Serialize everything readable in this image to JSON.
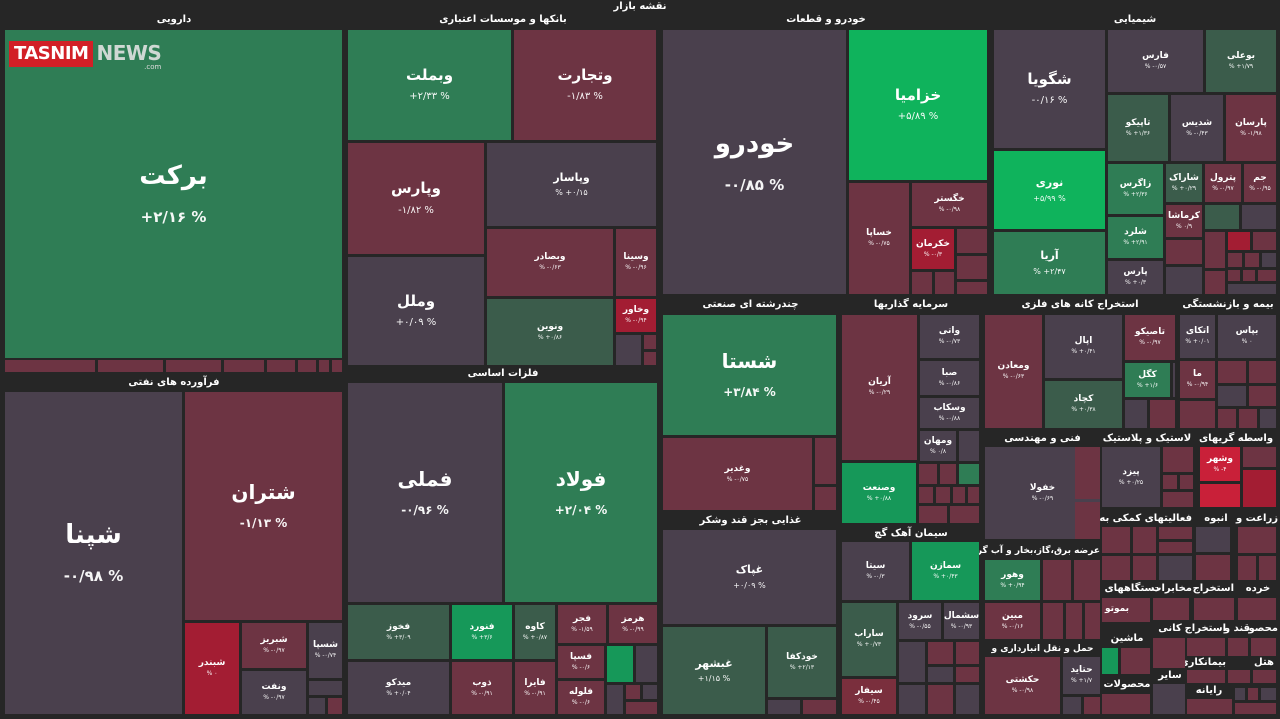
{
  "page_title": "نقشه بازار",
  "logo": {
    "part1": "TASNIM",
    "part2": "NEWS",
    "part3": ".com"
  },
  "sections": {
    "darooi": "دارویی",
    "banks": "بانکها و موسسات اعتباری",
    "khodro": "خودرو و قطعات",
    "shimiyai": "شیمیایی",
    "faravarde": "فرآورده های نفتی",
    "felezat": "فلزات اساسی",
    "chandreshte": "چندرشته ای صنعتی",
    "sarmaye": "سرمایه گذاریها",
    "estekhraj": "استخراج کانه های فلزی",
    "bime": "بیمه و بازنشستگی",
    "fanni": "فنی و مهندسی",
    "lastik": "لاستیک و پلاستیک",
    "vasete": "واسطه گریهای",
    "ghazaei": "غذایی بجز قند وشکر",
    "simane": "سیمان آهک گچ",
    "arze_bargh": "عرضه برق،گاز،بخار و آب گرم",
    "haml": "حمل و نقل انبارداری و",
    "faaliat": "فعالیتهای کمکی به",
    "anboh": "انبوه",
    "zeraat": "زراعت و",
    "dastgah": "دستگاههای",
    "mokhaberat": "مخابرات",
    "estekhraj2": "استخراج",
    "kharde": "خرده",
    "mashin": "ماشین",
    "kani": "کانی",
    "estekhraj3": "استخراج",
    "ghand": "قند و",
    "mahsoolat": "محصولات",
    "sayer": "سایر",
    "bimanekari": "بیمانکاری",
    "mahsool2": "محصو",
    "hotel": "هتل",
    "rayane": "رایانه"
  },
  "tiles": {
    "barekat": {
      "name": "برکت",
      "pct": "% ۲/۱۶+"
    },
    "shapna": {
      "name": "شپنا",
      "pct": "% ۰/۹۸-"
    },
    "shatran": {
      "name": "شتران",
      "pct": "% ۱/۱۳-"
    },
    "shabriz": {
      "name": "شبریز",
      "pct": "۰/۹۷- %"
    },
    "shebandar": {
      "name": "شبندر",
      "pct": "۰ %"
    },
    "shaspa": {
      "name": "شسپا",
      "pct": "۰/۷۴- %"
    },
    "vanaft": {
      "name": "ونفت",
      "pct": "۰/۹۷- %"
    },
    "vabemellat": {
      "name": "وبملت",
      "pct": "% ۲/۳۳+"
    },
    "vatejarat": {
      "name": "وتجارت",
      "pct": "% ۱/۸۳-"
    },
    "vaparsi": {
      "name": "وپارس",
      "pct": "% ۱/۸۲-"
    },
    "vapasar": {
      "name": "وپاسار",
      "pct": "۰/۱۵+ %"
    },
    "vamellal": {
      "name": "وملل",
      "pct": "% ۰/۰۹+"
    },
    "vabsader": {
      "name": "وبصادر",
      "pct": "۰/۶۳- %"
    },
    "vasina": {
      "name": "وسینا",
      "pct": "۰/۹۶- %"
    },
    "vakhavar": {
      "name": "وخاور",
      "pct": "۰/۹۴- %"
    },
    "vanovin": {
      "name": "ونوین",
      "pct": "۰/۸۶+ %"
    },
    "khodro": {
      "name": "خودرو",
      "pct": "% ۰/۸۵-"
    },
    "khazamia": {
      "name": "خزامیا",
      "pct": "% ۵/۸۹+"
    },
    "khegostar": {
      "name": "خگستر",
      "pct": "۰/۹۸- %"
    },
    "khesapa": {
      "name": "خساپا",
      "pct": "۰/۷۵- %"
    },
    "khekerman": {
      "name": "خکرمان",
      "pct": "۰/۳- %"
    },
    "shegooya": {
      "name": "شگویا",
      "pct": "% ۰/۱۶-"
    },
    "noori": {
      "name": "نوری",
      "pct": "% ۵/۹۹+"
    },
    "arya": {
      "name": "آریا",
      "pct": "۲/۴۷+ %"
    },
    "fars": {
      "name": "فارس",
      "pct": "۰/۵۷- %"
    },
    "boali": {
      "name": "بوعلی",
      "pct": "۱/۷۹+ %"
    },
    "tapiko": {
      "name": "تاپیکو",
      "pct": "۱/۳۶+ %"
    },
    "shedis": {
      "name": "شدیس",
      "pct": "۰/۴۳- %"
    },
    "parsan": {
      "name": "پارسان",
      "pct": "۱/۹۸- %"
    },
    "zagros": {
      "name": "زاگرس",
      "pct": "۲/۳۶+ %"
    },
    "sharak": {
      "name": "شاراک",
      "pct": "۰/۲۹+ %"
    },
    "petrol": {
      "name": "پترول",
      "pct": "۰/۹۷- %"
    },
    "jam": {
      "name": "جم",
      "pct": "۰/۹۵- %"
    },
    "kermasha": {
      "name": "کرماشا",
      "pct": "۰/۹ %"
    },
    "sharad": {
      "name": "شلرد",
      "pct": "۲/۹۱+ %"
    },
    "pars": {
      "name": "پارس",
      "pct": "۰/۳+ %"
    },
    "femli": {
      "name": "فملی",
      "pct": "% ۰/۹۶-"
    },
    "foolad": {
      "name": "فولاد",
      "pct": "% ۲/۰۴+"
    },
    "fakhooz": {
      "name": "فخوز",
      "pct": "۳/۰۹+ %"
    },
    "fanavard": {
      "name": "فنورد",
      "pct": "۳/۶+ %"
    },
    "kave": {
      "name": "کاوه",
      "pct": "۰/۸۷+ %"
    },
    "fajr": {
      "name": "فجر",
      "pct": "۱/۵۹- %"
    },
    "hormoz": {
      "name": "هرمز",
      "pct": "۰/۹۹- %"
    },
    "midko": {
      "name": "میدکو",
      "pct": "۰/۰۴+ %"
    },
    "zob": {
      "name": "ذوب",
      "pct": "۰/۹۱- %"
    },
    "fasapa": {
      "name": "فسپا",
      "pct": "۰/۶- %"
    },
    "faira": {
      "name": "فایرا",
      "pct": "۰/۹۱- %"
    },
    "foolah": {
      "name": "فلوله",
      "pct": "۰/۶- %"
    },
    "shasta": {
      "name": "شستا",
      "pct": "% ۳/۸۴+"
    },
    "vaghadir": {
      "name": "وغدیر",
      "pct": "۰/۷۵- %"
    },
    "ghpak": {
      "name": "غپاک",
      "pct": "% ۰/۰۹+"
    },
    "ghbshahr": {
      "name": "غبشهر",
      "pct": "% ۱/۱۵+"
    },
    "khodka": {
      "name": "خودکفا",
      "pct": "۲/۱۳+ %"
    },
    "arian": {
      "name": "آریان",
      "pct": "۰/۲۹- %"
    },
    "vati": {
      "name": "واتی",
      "pct": "۰/۷۳- %"
    },
    "saba": {
      "name": "صبا",
      "pct": "۰/۸۶- %"
    },
    "vaskab": {
      "name": "وسکاب",
      "pct": "۰/۸۸- %"
    },
    "vamahan": {
      "name": "ومهان",
      "pct": "۰/۸ %"
    },
    "vasanat": {
      "name": "وصنعت",
      "pct": "۰/۸۸+ %"
    },
    "vamaaden": {
      "name": "ومعادن",
      "pct": "۰/۶۳- %"
    },
    "apal": {
      "name": "اپال",
      "pct": "۰/۴۱+ %"
    },
    "tapiko2": {
      "name": "تاصیکو",
      "pct": "۰/۹۷- %"
    },
    "kegol": {
      "name": "کگل",
      "pct": "۱/۶+ %"
    },
    "kechad": {
      "name": "کچاد",
      "pct": "۰/۳۸+ %"
    },
    "atakai": {
      "name": "اتکای",
      "pct": "۰/۰۱+ %"
    },
    "bapas": {
      "name": "بپاس",
      "pct": "۰ %"
    },
    "ma": {
      "name": "ما",
      "pct": "۰/۹۴- %"
    },
    "khfoola": {
      "name": "خفولا",
      "pct": "۰/۶۹- %"
    },
    "pizd": {
      "name": "پیزد",
      "pct": "۰/۲۵+ %"
    },
    "vashahr": {
      "name": "وشهر",
      "pct": "۴- %"
    },
    "sita": {
      "name": "سیتا",
      "pct": "۰/۳- %"
    },
    "samazan": {
      "name": "سمازن",
      "pct": "۰/۴۳+ %"
    },
    "sarob": {
      "name": "ساراب",
      "pct": "۰/۷۳+ %"
    },
    "saroud": {
      "name": "سرود",
      "pct": "۰/۵۵- %"
    },
    "sashmal": {
      "name": "سشمال",
      "pct": "۰/۹۳- %"
    },
    "sifar": {
      "name": "سیفار",
      "pct": "۰/۴۵- %"
    },
    "vahor": {
      "name": "وهور",
      "pct": "۰/۹۴+ %"
    },
    "mabin": {
      "name": "مبین",
      "pct": "۰/۱۶- %"
    },
    "hakashti": {
      "name": "حکشتی",
      "pct": "۰/۹۸- %"
    },
    "hatayd": {
      "name": "حتاید",
      "pct": "۱/۷+ %"
    },
    "batoo": {
      "name": "بموتو",
      "pct": ""
    }
  }
}
